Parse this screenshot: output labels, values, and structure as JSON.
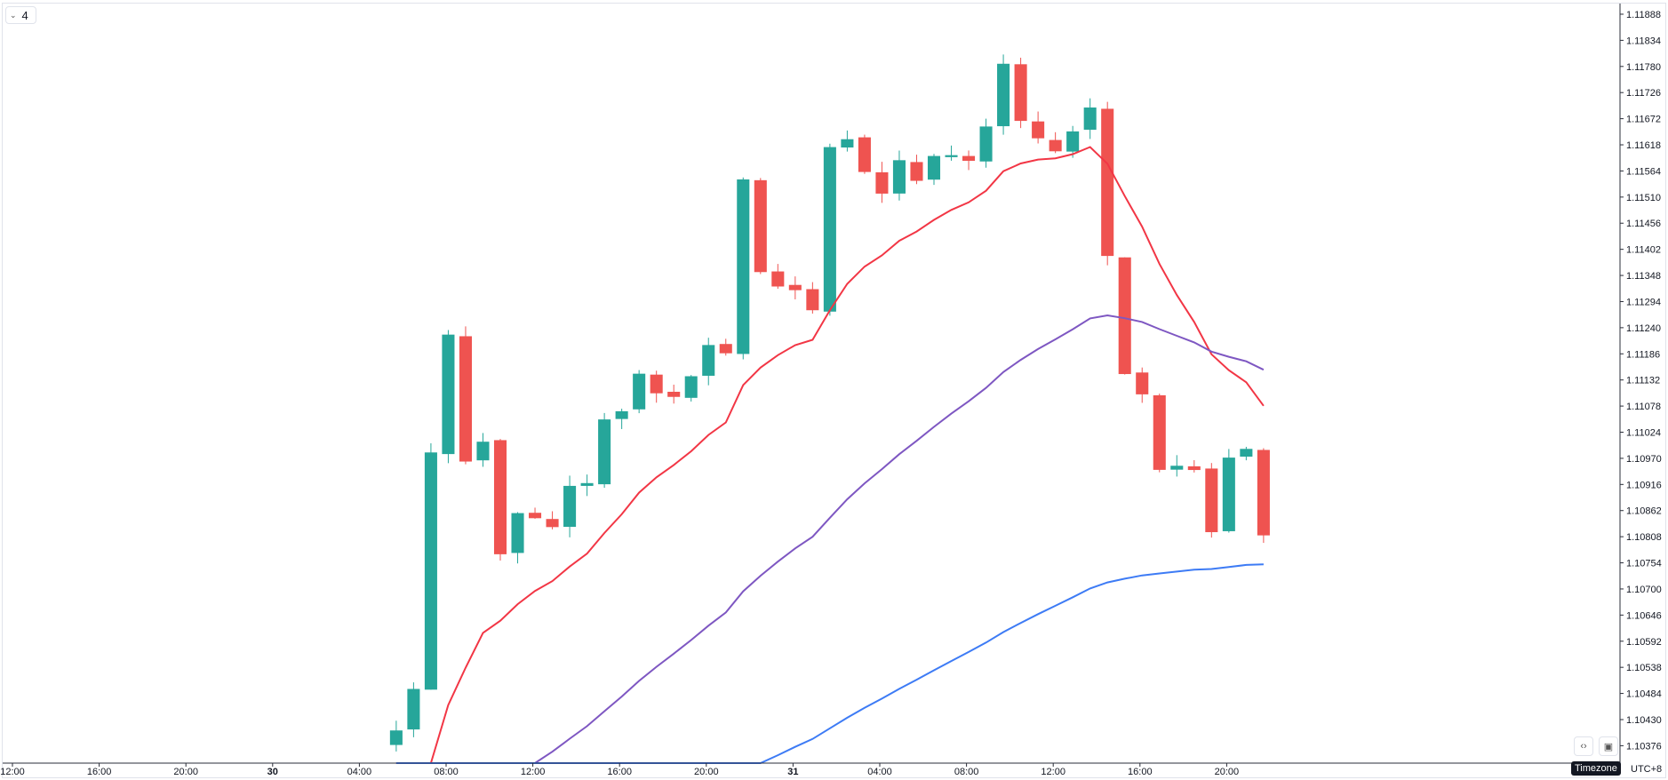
{
  "toolbar": {
    "interval_badge": "4"
  },
  "footer": {
    "timezone_label": "Timezone",
    "utc_label": "UTC+8"
  },
  "icons": {
    "collapse": "chevron-down-icon",
    "scale_toggle": "code-brackets-icon",
    "auto_scale": "auto-fit-icon"
  },
  "colors": {
    "up": "#26a69a",
    "down": "#ef5350",
    "ma_fast": "#f23645",
    "ma_mid": "#7e57c2",
    "ma_slow": "#3d7bf5"
  },
  "chart_data": {
    "type": "candlestick",
    "title": "",
    "ylim": [
      1.1034,
      1.1191
    ],
    "y_ticks": [
      "1.11888",
      "1.11834",
      "1.11780",
      "1.11726",
      "1.11672",
      "1.11618",
      "1.11564",
      "1.11510",
      "1.11456",
      "1.11402",
      "1.11348",
      "1.11294",
      "1.11240",
      "1.11186",
      "1.11132",
      "1.11078",
      "1.11024",
      "1.10970",
      "1.10916",
      "1.10862",
      "1.10808",
      "1.10754",
      "1.10700",
      "1.10646",
      "1.10592",
      "1.10538",
      "1.10484",
      "1.10430",
      "1.10376"
    ],
    "x_ticks": [
      {
        "label": "12:00",
        "bold": false
      },
      {
        "label": "16:00",
        "bold": false
      },
      {
        "label": "20:00",
        "bold": false
      },
      {
        "label": "30",
        "bold": true
      },
      {
        "label": "04:00",
        "bold": false
      },
      {
        "label": "08:00",
        "bold": false
      },
      {
        "label": "12:00",
        "bold": false
      },
      {
        "label": "16:00",
        "bold": false
      },
      {
        "label": "20:00",
        "bold": false
      },
      {
        "label": "31",
        "bold": true
      },
      {
        "label": "04:00",
        "bold": false
      },
      {
        "label": "08:00",
        "bold": false
      },
      {
        "label": "12:00",
        "bold": false
      },
      {
        "label": "16:00",
        "bold": false
      },
      {
        "label": "20:00",
        "bold": false
      }
    ],
    "price_path": [
      [
        0.0,
        1.1036
      ],
      [
        0.5,
        1.104
      ],
      [
        0.8,
        1.1047
      ],
      [
        1.1,
        1.1042
      ],
      [
        1.4,
        1.1064
      ],
      [
        1.7,
        1.1086
      ],
      [
        2.0,
        1.1098
      ],
      [
        2.3,
        1.1118
      ],
      [
        2.6,
        1.1116
      ],
      [
        3.0,
        1.113
      ],
      [
        3.3,
        1.1104
      ],
      [
        3.6,
        1.1096
      ],
      [
        4.0,
        1.111
      ],
      [
        4.4,
        1.11
      ],
      [
        4.8,
        1.1082
      ],
      [
        5.2,
        1.1078
      ],
      [
        5.6,
        1.1076
      ],
      [
        6.0,
        1.1084
      ],
      [
        6.4,
        1.1088
      ],
      [
        6.8,
        1.1085
      ],
      [
        7.2,
        1.1084
      ],
      [
        7.6,
        1.1083
      ],
      [
        8.0,
        1.1085
      ],
      [
        8.4,
        1.1092
      ],
      [
        8.8,
        1.109
      ],
      [
        9.2,
        1.1092
      ],
      [
        9.6,
        1.109
      ],
      [
        10.0,
        1.1104
      ],
      [
        10.4,
        1.1102
      ],
      [
        10.8,
        1.1108
      ],
      [
        11.2,
        1.1113
      ],
      [
        11.6,
        1.1115
      ],
      [
        12.0,
        1.1118
      ],
      [
        12.4,
        1.111
      ],
      [
        12.8,
        1.1108
      ],
      [
        13.2,
        1.111
      ],
      [
        13.6,
        1.1113
      ],
      [
        14.0,
        1.1115
      ],
      [
        14.4,
        1.1128
      ],
      [
        14.8,
        1.1122
      ],
      [
        15.2,
        1.1124
      ],
      [
        15.6,
        1.112
      ],
      [
        16.0,
        1.113
      ],
      [
        16.3,
        1.1154
      ],
      [
        16.6,
        1.1156
      ],
      [
        17.0,
        1.1145
      ],
      [
        17.3,
        1.113
      ],
      [
        17.6,
        1.1125
      ],
      [
        18.0,
        1.1132
      ],
      [
        18.3,
        1.1143
      ],
      [
        18.6,
        1.1138
      ],
      [
        19.0,
        1.1128
      ],
      [
        19.3,
        1.1116
      ],
      [
        19.6,
        1.1126
      ],
      [
        20.0,
        1.114
      ],
      [
        20.3,
        1.116
      ],
      [
        20.6,
        1.1164
      ],
      [
        21.0,
        1.116
      ],
      [
        21.4,
        1.1163
      ],
      [
        21.8,
        1.1156
      ],
      [
        22.2,
        1.1154
      ],
      [
        22.6,
        1.1151
      ],
      [
        23.0,
        1.115
      ],
      [
        23.4,
        1.1154
      ],
      [
        23.8,
        1.116
      ],
      [
        24.2,
        1.1154
      ],
      [
        24.6,
        1.1156
      ],
      [
        25.0,
        1.1158
      ],
      [
        25.4,
        1.1159
      ],
      [
        25.8,
        1.1157
      ],
      [
        26.2,
        1.116
      ],
      [
        26.6,
        1.1159
      ],
      [
        27.0,
        1.116
      ],
      [
        27.4,
        1.1164
      ],
      [
        27.8,
        1.117
      ],
      [
        28.2,
        1.1181
      ],
      [
        28.5,
        1.1176
      ],
      [
        28.8,
        1.1172
      ],
      [
        29.2,
        1.1167
      ],
      [
        29.6,
        1.1166
      ],
      [
        30.0,
        1.1164
      ],
      [
        30.4,
        1.116
      ],
      [
        30.8,
        1.1159
      ],
      [
        31.2,
        1.1161
      ],
      [
        31.6,
        1.1166
      ],
      [
        32.0,
        1.117
      ],
      [
        32.3,
        1.1172
      ],
      [
        32.6,
        1.1162
      ],
      [
        33.0,
        1.115
      ],
      [
        33.3,
        1.1134
      ],
      [
        33.6,
        1.1125
      ],
      [
        34.0,
        1.1115
      ],
      [
        34.3,
        1.1125
      ],
      [
        34.6,
        1.1115
      ],
      [
        35.0,
        1.1105
      ],
      [
        35.3,
        1.109
      ],
      [
        35.6,
        1.1095
      ],
      [
        36.0,
        1.1102
      ],
      [
        36.4,
        1.1095
      ],
      [
        36.8,
        1.1105
      ],
      [
        37.2,
        1.1095
      ],
      [
        37.6,
        1.1076
      ],
      [
        38.0,
        1.1083
      ],
      [
        38.3,
        1.109
      ],
      [
        38.6,
        1.108
      ],
      [
        39.0,
        1.1117
      ],
      [
        39.3,
        1.1111
      ],
      [
        39.6,
        1.1098
      ],
      [
        40.0,
        1.109
      ],
      [
        40.3,
        1.1082
      ],
      [
        40.6,
        1.108
      ]
    ],
    "candles_per_hour": 1.25,
    "hours_shown": 40.6,
    "ma_periods": [
      12,
      40,
      110
    ]
  }
}
